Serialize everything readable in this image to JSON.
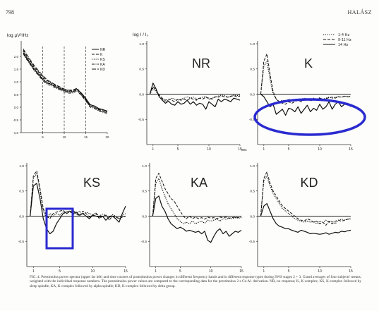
{
  "header": {
    "page_number": "798",
    "author": "HALÁSZ"
  },
  "caption": "FIG. 4. Prestimulus power spectra (upper far left) and time courses of poststimulus power changes in different frequency bands and in different response types during SWS stages 2 + 3. Grand averages of four subjects' means, weighted with the individual response numbers. The poststimulus power values are compared to the corresponding data for the prestimulus 2 s Cz-A1 derivation. NR, no response; K, K-complex; KS, K-complex followed by sleep spindle; KA, K-complex followed by alpha spindle; KD, K-complex followed by delta group.",
  "accent_color": "#2a2ad0",
  "chart_data": [
    {
      "type": "line",
      "panel": "spectra",
      "ylabel": "log µV²/Hz",
      "ylim": [
        -1.0,
        2.5
      ],
      "xlim": [
        0,
        20
      ],
      "yticks": [
        "2.0",
        "1.5",
        "1.0",
        "0.5",
        "0.0",
        "-0.5",
        "-1.0"
      ],
      "xticks": [
        "5",
        "10",
        "15",
        "20"
      ],
      "dashed_marks_at": [
        5,
        10,
        15
      ],
      "x": [
        0.5,
        1,
        2,
        3,
        4,
        5,
        6,
        7,
        8,
        9,
        10,
        11,
        12,
        13,
        14,
        15,
        16,
        17,
        18,
        19,
        20
      ],
      "series": [
        {
          "name": "NR",
          "style": "solid",
          "values": [
            2.15,
            2.0,
            1.75,
            1.5,
            1.3,
            1.1,
            0.95,
            0.9,
            0.8,
            0.72,
            0.65,
            0.6,
            0.6,
            0.7,
            0.55,
            0.35,
            0.1,
            0.05,
            -0.05,
            -0.1,
            -0.15
          ]
        },
        {
          "name": "K",
          "style": "dash",
          "values": [
            2.25,
            2.1,
            1.85,
            1.6,
            1.4,
            1.2,
            1.05,
            0.95,
            0.85,
            0.78,
            0.7,
            0.65,
            0.65,
            0.72,
            0.5,
            0.3,
            0.05,
            0.0,
            -0.1,
            -0.15,
            -0.2
          ]
        },
        {
          "name": "KS",
          "style": "dot",
          "values": [
            2.2,
            2.05,
            1.8,
            1.55,
            1.35,
            1.15,
            1.0,
            0.92,
            0.82,
            0.75,
            0.68,
            0.62,
            0.62,
            0.68,
            0.48,
            0.28,
            0.05,
            -0.02,
            -0.12,
            -0.18,
            -0.22
          ]
        },
        {
          "name": "KA",
          "style": "dashdot",
          "values": [
            2.1,
            1.95,
            1.7,
            1.45,
            1.25,
            1.05,
            0.9,
            0.85,
            0.75,
            0.68,
            0.6,
            0.55,
            0.56,
            0.64,
            0.45,
            0.25,
            0.0,
            -0.05,
            -0.15,
            -0.2,
            -0.25
          ]
        },
        {
          "name": "KD",
          "style": "longdash",
          "values": [
            2.3,
            2.15,
            1.9,
            1.65,
            1.45,
            1.25,
            1.08,
            0.98,
            0.88,
            0.8,
            0.72,
            0.67,
            0.68,
            0.75,
            0.52,
            0.3,
            0.05,
            0.0,
            -0.08,
            -0.14,
            -0.18
          ]
        }
      ]
    },
    {
      "type": "line",
      "panel": "NR",
      "ylabel": "log I / I₀",
      "ylim": [
        -1.0,
        1.0
      ],
      "xlim": [
        0,
        15
      ],
      "x": [
        0.5,
        1,
        1.5,
        2,
        2.5,
        3,
        3.5,
        4,
        4.5,
        5,
        5.5,
        6,
        6.5,
        7,
        7.5,
        8,
        8.5,
        9,
        9.5,
        10,
        10.5,
        11,
        11.5,
        12,
        12.5,
        13,
        13.5,
        14,
        14.5,
        15
      ],
      "series": [
        {
          "name": "1-4 Hz",
          "style": "dot",
          "values": [
            0.0,
            0.12,
            0.05,
            -0.05,
            -0.1,
            -0.15,
            -0.12,
            -0.08,
            -0.1,
            -0.12,
            -0.1,
            -0.08,
            -0.05,
            -0.08,
            -0.06,
            -0.1,
            -0.08,
            -0.06,
            -0.05,
            -0.1,
            -0.08,
            -0.06,
            -0.04,
            -0.02,
            -0.03,
            -0.06,
            -0.05,
            -0.02,
            -0.03,
            -0.02
          ]
        },
        {
          "name": "9-11 Hz",
          "style": "dash",
          "values": [
            0.0,
            0.15,
            0.08,
            -0.02,
            -0.08,
            -0.12,
            -0.1,
            -0.12,
            -0.15,
            -0.1,
            -0.12,
            -0.1,
            -0.12,
            -0.08,
            -0.1,
            -0.12,
            -0.08,
            -0.1,
            -0.06,
            -0.08,
            -0.1,
            -0.05,
            -0.06,
            -0.04,
            -0.05,
            -0.06,
            -0.04,
            -0.03,
            -0.05,
            -0.04
          ]
        },
        {
          "name": "14 Hz",
          "style": "solid",
          "values": [
            0.0,
            0.22,
            0.1,
            -0.05,
            -0.12,
            -0.18,
            -0.14,
            -0.2,
            -0.22,
            -0.15,
            -0.2,
            -0.18,
            -0.12,
            -0.2,
            -0.15,
            -0.22,
            -0.18,
            -0.2,
            -0.3,
            -0.15,
            -0.2,
            -0.25,
            -0.1,
            -0.15,
            -0.1,
            -0.12,
            -0.15,
            -0.08,
            -0.1,
            -0.12
          ]
        }
      ],
      "tag": "NR"
    },
    {
      "type": "line",
      "panel": "K",
      "ylim": [
        -1.0,
        1.0
      ],
      "xlim": [
        0,
        15
      ],
      "x": [
        0.5,
        1,
        1.5,
        2,
        2.5,
        3,
        3.5,
        4,
        4.5,
        5,
        5.5,
        6,
        6.5,
        7,
        7.5,
        8,
        8.5,
        9,
        9.5,
        10,
        10.5,
        11,
        11.5,
        12,
        12.5,
        13,
        13.5,
        14,
        14.5,
        15
      ],
      "series": [
        {
          "name": "1-4 Hz",
          "style": "dot",
          "values": [
            0.0,
            0.55,
            0.65,
            0.3,
            0.0,
            -0.1,
            -0.15,
            -0.12,
            -0.15,
            -0.1,
            -0.12,
            -0.1,
            -0.12,
            -0.1,
            -0.08,
            -0.1,
            -0.12,
            -0.08,
            -0.1,
            -0.07,
            -0.1,
            -0.08,
            -0.06,
            -0.08,
            -0.06,
            -0.05,
            -0.06,
            -0.04,
            -0.05,
            -0.04
          ]
        },
        {
          "name": "9-11 Hz",
          "style": "dash",
          "values": [
            0.0,
            0.65,
            0.8,
            0.4,
            0.05,
            -0.1,
            -0.15,
            -0.18,
            -0.2,
            -0.15,
            -0.18,
            -0.15,
            -0.12,
            -0.15,
            -0.12,
            -0.1,
            -0.14,
            -0.1,
            -0.12,
            -0.08,
            -0.1,
            -0.09,
            -0.07,
            -0.06,
            -0.08,
            -0.05,
            -0.06,
            -0.04,
            -0.05,
            -0.05
          ]
        },
        {
          "name": "14 Hz",
          "style": "solid",
          "values": [
            0.0,
            -0.05,
            -0.15,
            -0.25,
            -0.2,
            -0.4,
            -0.35,
            -0.3,
            -0.42,
            -0.28,
            -0.3,
            -0.35,
            -0.25,
            -0.38,
            -0.3,
            -0.22,
            -0.35,
            -0.28,
            -0.32,
            -0.2,
            -0.3,
            -0.25,
            -0.15,
            -0.3,
            -0.2,
            -0.15,
            -0.25,
            -0.2,
            -0.18,
            -0.25
          ]
        }
      ],
      "tag": "K"
    },
    {
      "type": "line",
      "panel": "KS",
      "ylim": [
        -1.0,
        1.0
      ],
      "xlim": [
        0,
        15
      ],
      "x": [
        0.5,
        1,
        1.5,
        2,
        2.5,
        3,
        3.5,
        4,
        4.5,
        5,
        5.5,
        6,
        6.5,
        7,
        7.5,
        8,
        8.5,
        9,
        9.5,
        10,
        10.5,
        11,
        11.5,
        12,
        12.5,
        13,
        13.5,
        14,
        14.5,
        15
      ],
      "series": [
        {
          "name": "1-4 Hz",
          "style": "dot",
          "values": [
            0.0,
            0.75,
            0.85,
            0.5,
            0.1,
            -0.05,
            0.05,
            0.0,
            0.05,
            0.02,
            0.08,
            0.05,
            0.1,
            0.03,
            0.06,
            0.1,
            0.04,
            0.08,
            0.05,
            0.03,
            0.06,
            0.0,
            0.04,
            0.02,
            -0.02,
            0.03,
            0.0,
            -0.05,
            0.02,
            0.05
          ]
        },
        {
          "name": "9-11 Hz",
          "style": "dash",
          "values": [
            0.0,
            0.8,
            0.9,
            0.55,
            0.15,
            0.0,
            -0.05,
            0.05,
            0.08,
            0.1,
            0.12,
            0.05,
            0.08,
            0.12,
            0.05,
            0.0,
            0.1,
            0.05,
            -0.02,
            0.02,
            0.05,
            -0.05,
            0.0,
            0.02,
            -0.08,
            0.0,
            -0.02,
            -0.05,
            -0.02,
            0.0
          ]
        },
        {
          "name": "14 Hz",
          "style": "solid",
          "values": [
            0.0,
            0.6,
            0.65,
            0.35,
            -0.05,
            -0.25,
            -0.35,
            -0.3,
            -0.15,
            -0.05,
            0.05,
            0.08,
            0.1,
            0.05,
            0.08,
            0.02,
            0.05,
            0.0,
            -0.05,
            0.02,
            0.0,
            -0.02,
            0.0,
            -0.08,
            -0.02,
            0.0,
            -0.05,
            -0.12,
            0.05,
            0.2
          ]
        }
      ],
      "tag": "KS"
    },
    {
      "type": "line",
      "panel": "KA",
      "ylim": [
        -1.0,
        1.0
      ],
      "xlim": [
        0,
        15
      ],
      "x": [
        0.5,
        1,
        1.5,
        2,
        2.5,
        3,
        3.5,
        4,
        4.5,
        5,
        5.5,
        6,
        6.5,
        7,
        7.5,
        8,
        8.5,
        9,
        9.5,
        10,
        10.5,
        11,
        11.5,
        12,
        12.5,
        13,
        13.5,
        14,
        14.5,
        15
      ],
      "series": [
        {
          "name": "1-4 Hz",
          "style": "dot",
          "values": [
            0.0,
            0.65,
            0.75,
            0.55,
            0.4,
            0.25,
            0.15,
            0.05,
            -0.05,
            -0.1,
            -0.15,
            -0.12,
            -0.15,
            -0.1,
            -0.15,
            -0.12,
            -0.1,
            -0.14,
            -0.08,
            -0.1,
            -0.08,
            -0.06,
            -0.1,
            -0.05,
            -0.06,
            -0.04,
            -0.05,
            -0.03,
            -0.04,
            -0.03
          ]
        },
        {
          "name": "9-11 Hz",
          "style": "dash",
          "values": [
            0.0,
            0.75,
            0.85,
            0.7,
            0.55,
            0.45,
            0.35,
            0.3,
            0.2,
            0.1,
            0.0,
            -0.05,
            0.0,
            -0.05,
            -0.02,
            -0.05,
            -0.03,
            -0.06,
            -0.02,
            -0.04,
            -0.03,
            -0.05,
            -0.02,
            -0.03,
            -0.02,
            -0.04,
            -0.03,
            -0.02,
            -0.03,
            -0.02
          ]
        },
        {
          "name": "14 Hz",
          "style": "solid",
          "values": [
            0.0,
            0.35,
            0.4,
            0.2,
            0.1,
            -0.05,
            -0.15,
            -0.2,
            -0.25,
            -0.22,
            -0.25,
            -0.3,
            -0.28,
            -0.3,
            -0.32,
            -0.3,
            -0.35,
            -0.3,
            -0.48,
            -0.52,
            -0.4,
            -0.3,
            -0.25,
            -0.35,
            -0.3,
            -0.4,
            -0.35,
            -0.3,
            -0.32,
            -0.28
          ]
        }
      ],
      "tag": "KA"
    },
    {
      "type": "line",
      "panel": "KD",
      "ylim": [
        -1.0,
        1.0
      ],
      "xlim": [
        0,
        15
      ],
      "x": [
        0.5,
        1,
        1.5,
        2,
        2.5,
        3,
        3.5,
        4,
        4.5,
        5,
        5.5,
        6,
        6.5,
        7,
        7.5,
        8,
        8.5,
        9,
        9.5,
        10,
        10.5,
        11,
        11.5,
        12,
        12.5,
        13,
        13.5,
        14,
        14.5,
        15
      ],
      "series": [
        {
          "name": "1-4 Hz",
          "style": "dot",
          "values": [
            0.0,
            0.7,
            0.8,
            0.6,
            0.45,
            0.35,
            0.25,
            0.15,
            0.1,
            0.05,
            0.0,
            -0.05,
            -0.08,
            -0.1,
            -0.12,
            -0.1,
            -0.12,
            -0.1,
            -0.15,
            -0.1,
            -0.12,
            -0.08,
            -0.12,
            -0.1,
            -0.15,
            -0.08,
            -0.06,
            -0.08,
            -0.06,
            -0.05
          ]
        },
        {
          "name": "9-11 Hz",
          "style": "dash",
          "values": [
            0.0,
            0.75,
            0.88,
            0.65,
            0.5,
            0.4,
            0.3,
            0.2,
            0.15,
            0.1,
            0.05,
            0.0,
            -0.05,
            -0.08,
            -0.1,
            -0.05,
            -0.08,
            -0.12,
            -0.1,
            -0.15,
            -0.12,
            -0.18,
            -0.1,
            -0.15,
            -0.1,
            -0.08,
            -0.1,
            -0.08,
            -0.06,
            -0.06
          ]
        },
        {
          "name": "14 Hz",
          "style": "solid",
          "values": [
            0.0,
            0.2,
            0.25,
            0.1,
            -0.05,
            -0.15,
            -0.2,
            -0.22,
            -0.25,
            -0.25,
            -0.28,
            -0.3,
            -0.32,
            -0.28,
            -0.3,
            -0.32,
            -0.35,
            -0.34,
            -0.35,
            -0.36,
            -0.35,
            -0.33,
            -0.36,
            -0.34,
            -0.32,
            -0.33,
            -0.3,
            -0.31,
            -0.29,
            -0.28
          ]
        }
      ],
      "tag": "KD"
    }
  ],
  "labels": {
    "legend_spectra": [
      "NR",
      "K",
      "KS",
      "KA",
      "KD"
    ],
    "legend_bands": [
      "1-4 Hz",
      "9-11 Hz",
      "14 Hz"
    ],
    "panel_ticks_y": [
      "1.0",
      "0.5",
      "0.0",
      "-0.5"
    ],
    "panel_ticks_x": [
      "1",
      "5",
      "10",
      "15"
    ],
    "sec_label": "sec"
  }
}
